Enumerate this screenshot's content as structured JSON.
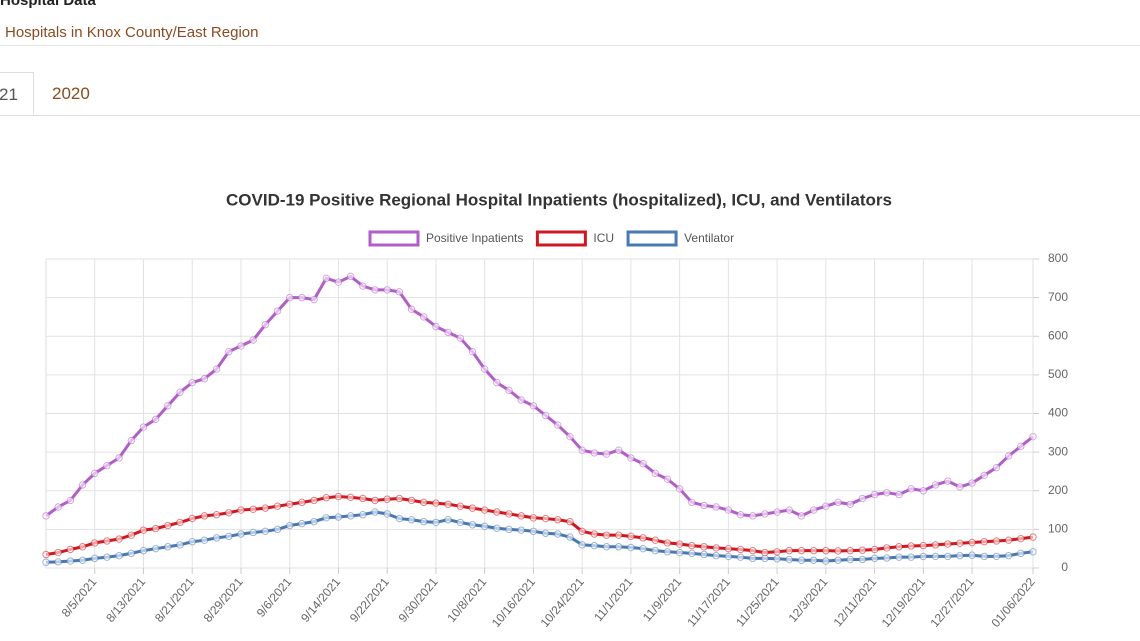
{
  "header": {
    "title": "Hospital Data",
    "subtitle": "Hospitals in Knox County/East Region"
  },
  "tabs": [
    "21",
    "2020"
  ],
  "chart_data": {
    "type": "line",
    "title": "COVID-19 Positive Regional Hospital Inpatients (hospitalized), ICU, and Ventilators",
    "categories": [
      null,
      null,
      null,
      null,
      "8/5/2021",
      null,
      null,
      null,
      "8/13/2021",
      null,
      null,
      null,
      "8/21/2021",
      null,
      null,
      null,
      "8/29/2021",
      null,
      null,
      null,
      "9/6/2021",
      null,
      null,
      null,
      "9/14/2021",
      null,
      null,
      null,
      "9/22/2021",
      null,
      null,
      null,
      "9/30/2021",
      null,
      null,
      null,
      "10/8/2021",
      null,
      null,
      null,
      "10/16/2021",
      null,
      null,
      null,
      "10/24/2021",
      null,
      null,
      null,
      "11/1/2021",
      null,
      null,
      null,
      "11/9/2021",
      null,
      null,
      null,
      "11/17/2021",
      null,
      null,
      null,
      "11/25/2021",
      null,
      null,
      null,
      "12/3/2021",
      null,
      null,
      null,
      "12/11/2021",
      null,
      null,
      null,
      "12/19/2021",
      null,
      null,
      null,
      "12/27/2021",
      null,
      null,
      null,
      null,
      "01/06/2022"
    ],
    "series": [
      {
        "name": "Positive Inpatients",
        "color": "#b15ec8",
        "values": [
          135,
          158,
          175,
          215,
          245,
          265,
          285,
          330,
          365,
          385,
          420,
          455,
          480,
          490,
          515,
          560,
          575,
          590,
          630,
          665,
          700,
          700,
          695,
          750,
          740,
          755,
          730,
          720,
          720,
          715,
          670,
          650,
          625,
          610,
          595,
          560,
          515,
          480,
          460,
          435,
          420,
          395,
          370,
          340,
          305,
          298,
          295,
          305,
          285,
          270,
          245,
          230,
          205,
          170,
          162,
          158,
          150,
          138,
          135,
          140,
          145,
          150,
          135,
          150,
          160,
          170,
          165,
          180,
          190,
          195,
          190,
          205,
          200,
          215,
          225,
          210,
          220,
          240,
          260,
          290,
          315,
          340
        ]
      },
      {
        "name": "ICU",
        "color": "#d01820",
        "values": [
          35,
          40,
          48,
          55,
          65,
          70,
          75,
          85,
          98,
          102,
          110,
          118,
          128,
          135,
          138,
          143,
          150,
          152,
          155,
          160,
          165,
          170,
          175,
          182,
          185,
          183,
          180,
          175,
          178,
          180,
          175,
          170,
          168,
          165,
          160,
          155,
          150,
          145,
          140,
          135,
          130,
          128,
          125,
          120,
          95,
          88,
          85,
          85,
          82,
          78,
          72,
          65,
          62,
          58,
          55,
          52,
          50,
          48,
          45,
          40,
          42,
          45,
          45,
          45,
          45,
          44,
          45,
          46,
          48,
          52,
          55,
          57,
          58,
          60,
          62,
          64,
          66,
          68,
          70,
          72,
          76,
          80
        ]
      },
      {
        "name": "Ventilator",
        "color": "#4a78b2",
        "values": [
          15,
          16,
          18,
          20,
          25,
          28,
          32,
          38,
          45,
          50,
          55,
          60,
          68,
          72,
          78,
          82,
          88,
          92,
          95,
          100,
          110,
          115,
          120,
          130,
          132,
          135,
          138,
          145,
          140,
          128,
          125,
          120,
          118,
          125,
          118,
          112,
          108,
          103,
          100,
          98,
          95,
          90,
          88,
          80,
          60,
          58,
          55,
          55,
          53,
          50,
          45,
          42,
          40,
          38,
          35,
          32,
          30,
          28,
          25,
          25,
          24,
          22,
          20,
          20,
          18,
          20,
          22,
          22,
          25,
          26,
          28,
          28,
          30,
          30,
          30,
          32,
          33,
          30,
          30,
          32,
          38,
          42
        ]
      }
    ],
    "ylim": [
      0,
      800
    ],
    "yticks": [
      0,
      100,
      200,
      300,
      400,
      500,
      600,
      700,
      800
    ],
    "grid": true,
    "legend": "top"
  }
}
